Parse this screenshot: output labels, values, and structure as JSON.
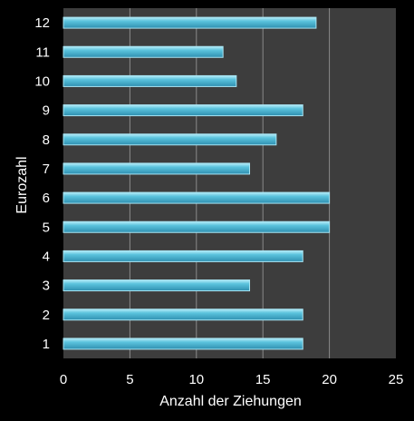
{
  "chart_data": {
    "type": "bar",
    "orientation": "horizontal",
    "categories": [
      "1",
      "2",
      "3",
      "4",
      "5",
      "6",
      "7",
      "8",
      "9",
      "10",
      "11",
      "12"
    ],
    "values": [
      18,
      18,
      14,
      18,
      20,
      20,
      14,
      16,
      18,
      13,
      12,
      19
    ],
    "xlabel": "Anzahl der Ziehungen",
    "ylabel": "Eurozahl",
    "xlim": [
      0,
      25
    ],
    "x_ticks": [
      "0",
      "5",
      "10",
      "15",
      "20",
      "25"
    ],
    "grid": "vertical",
    "colors": {
      "background": "#000000",
      "plot_area": "#3d3d3d",
      "bar": "#5bc3dd",
      "bar_edge": "#a8e6f5",
      "gridline": "#8a8a8a",
      "text": "#ffffff"
    }
  }
}
